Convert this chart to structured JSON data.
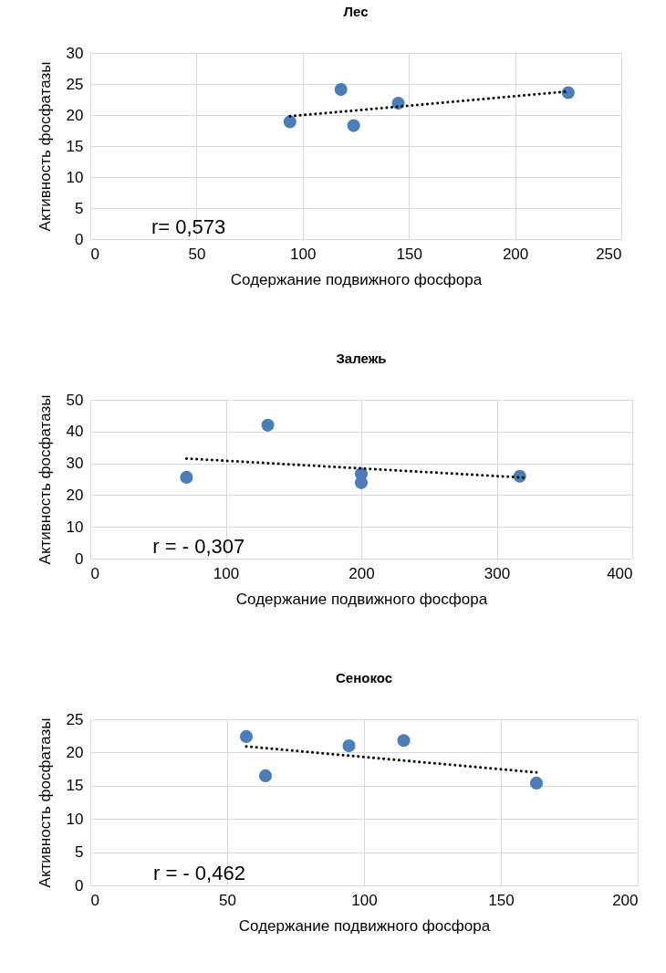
{
  "chart_data": [
    {
      "type": "scatter",
      "title": "Лес",
      "xlabel": "Содержание подвижного фосфора",
      "ylabel": "Активность фосфатазы",
      "xlim": [
        0,
        250
      ],
      "xticks": [
        0,
        50,
        100,
        150,
        200,
        250
      ],
      "ylim": [
        0,
        30
      ],
      "yticks": [
        0,
        5,
        10,
        15,
        20,
        25,
        30
      ],
      "grid": true,
      "marker": "circle",
      "annotations": [
        "r= 0,573"
      ],
      "series": [
        {
          "type": "scatter",
          "color": "#4a7ebb",
          "x": [
            94,
            118,
            124,
            145,
            225
          ],
          "values": [
            18.9,
            24.1,
            18.3,
            21.9,
            23.6
          ]
        },
        {
          "type": "line",
          "color": "#000000",
          "line_style": "dotted",
          "marker": "none",
          "x": [
            94,
            225
          ],
          "values": [
            19.8,
            23.8
          ]
        }
      ]
    },
    {
      "type": "scatter",
      "title": "Залежь",
      "xlabel": "Содержание подвижного фосфора",
      "ylabel": "Активность фосфатазы",
      "xlim": [
        0,
        400
      ],
      "xticks": [
        0,
        100,
        200,
        300,
        400
      ],
      "ylim": [
        0,
        50
      ],
      "yticks": [
        0,
        10,
        20,
        30,
        40,
        50
      ],
      "grid": true,
      "marker": "circle",
      "annotations": [
        "r = - 0,307"
      ],
      "series": [
        {
          "type": "scatter",
          "color": "#4a7ebb",
          "x": [
            71,
            131,
            200,
            200,
            317
          ],
          "values": [
            25.6,
            42,
            26.7,
            23.9,
            25.9
          ]
        },
        {
          "type": "line",
          "color": "#000000",
          "line_style": "dotted",
          "marker": "none",
          "x": [
            71,
            320
          ],
          "values": [
            31.5,
            25.5
          ]
        }
      ]
    },
    {
      "type": "scatter",
      "title": "Сенокос",
      "xlabel": "Содержание подвижного фосфора",
      "ylabel": "Активность фосфатазы",
      "xlim": [
        0,
        200
      ],
      "xticks": [
        0,
        50,
        100,
        150,
        200
      ],
      "ylim": [
        0,
        25
      ],
      "yticks": [
        0,
        5,
        10,
        15,
        20,
        25
      ],
      "grid": true,
      "marker": "circle",
      "annotations": [
        "r = - 0,462"
      ],
      "series": [
        {
          "type": "scatter",
          "color": "#4a7ebb",
          "x": [
            57,
            64,
            94.5,
            114.5,
            163
          ],
          "values": [
            22.4,
            16.5,
            21.0,
            21.8,
            15.4
          ]
        },
        {
          "type": "line",
          "color": "#000000",
          "line_style": "dotted",
          "marker": "none",
          "x": [
            57,
            163
          ],
          "values": [
            20.9,
            17.0
          ]
        }
      ]
    }
  ]
}
